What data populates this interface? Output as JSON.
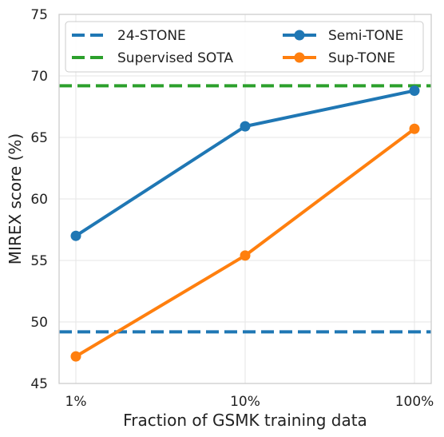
{
  "chart_data": {
    "type": "line",
    "xlabel": "Fraction of GSMK training data",
    "ylabel": "MIREX score (%)",
    "categories": [
      "1%",
      "10%",
      "100%"
    ],
    "ylim": [
      45,
      75
    ],
    "yticks": [
      45,
      50,
      55,
      60,
      65,
      70,
      75
    ],
    "grid": true,
    "legend_position": "top",
    "series": [
      {
        "name": "Semi-TONE",
        "values": [
          57.0,
          65.9,
          68.8
        ],
        "color": "#1f77b4"
      },
      {
        "name": "Sup-TONE",
        "values": [
          47.2,
          55.4,
          65.7
        ],
        "color": "#ff7f0e"
      }
    ],
    "reference_lines": [
      {
        "name": "24-STONE",
        "value": 49.2,
        "color": "#1f77b4",
        "style": "dashed"
      },
      {
        "name": "Supervised SOTA",
        "value": 69.2,
        "color": "#2ca02c",
        "style": "dashed"
      }
    ]
  }
}
